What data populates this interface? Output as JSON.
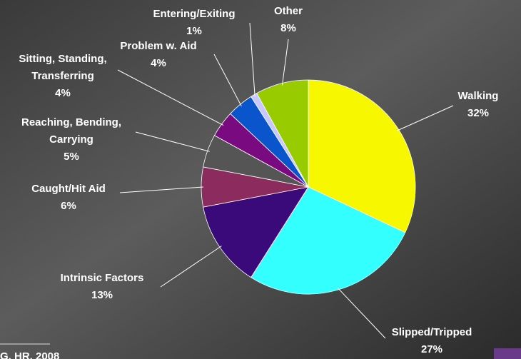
{
  "chart_data": {
    "type": "pie",
    "categories": [
      "Walking",
      "Slipped/Tripped",
      "Intrinsic Factors",
      "Caught/Hit Aid",
      "Reaching, Bending, Carrying",
      "Sitting, Standing, Transferring",
      "Problem w. Aid",
      "Entering/Exiting",
      "Other"
    ],
    "values": [
      32,
      27,
      13,
      6,
      5,
      4,
      4,
      1,
      8
    ],
    "value_labels": [
      "32%",
      "27%",
      "13%",
      "6%",
      "5%",
      "4%",
      "4%",
      "1%",
      "8%"
    ],
    "colors": [
      "#f7f700",
      "#33ffff",
      "#3b0a7a",
      "#8c2b5e",
      "#555555",
      "#7a0a80",
      "#0a55cc",
      "#c8c8ff",
      "#99cc00"
    ],
    "source": "G, HR, 2008"
  }
}
